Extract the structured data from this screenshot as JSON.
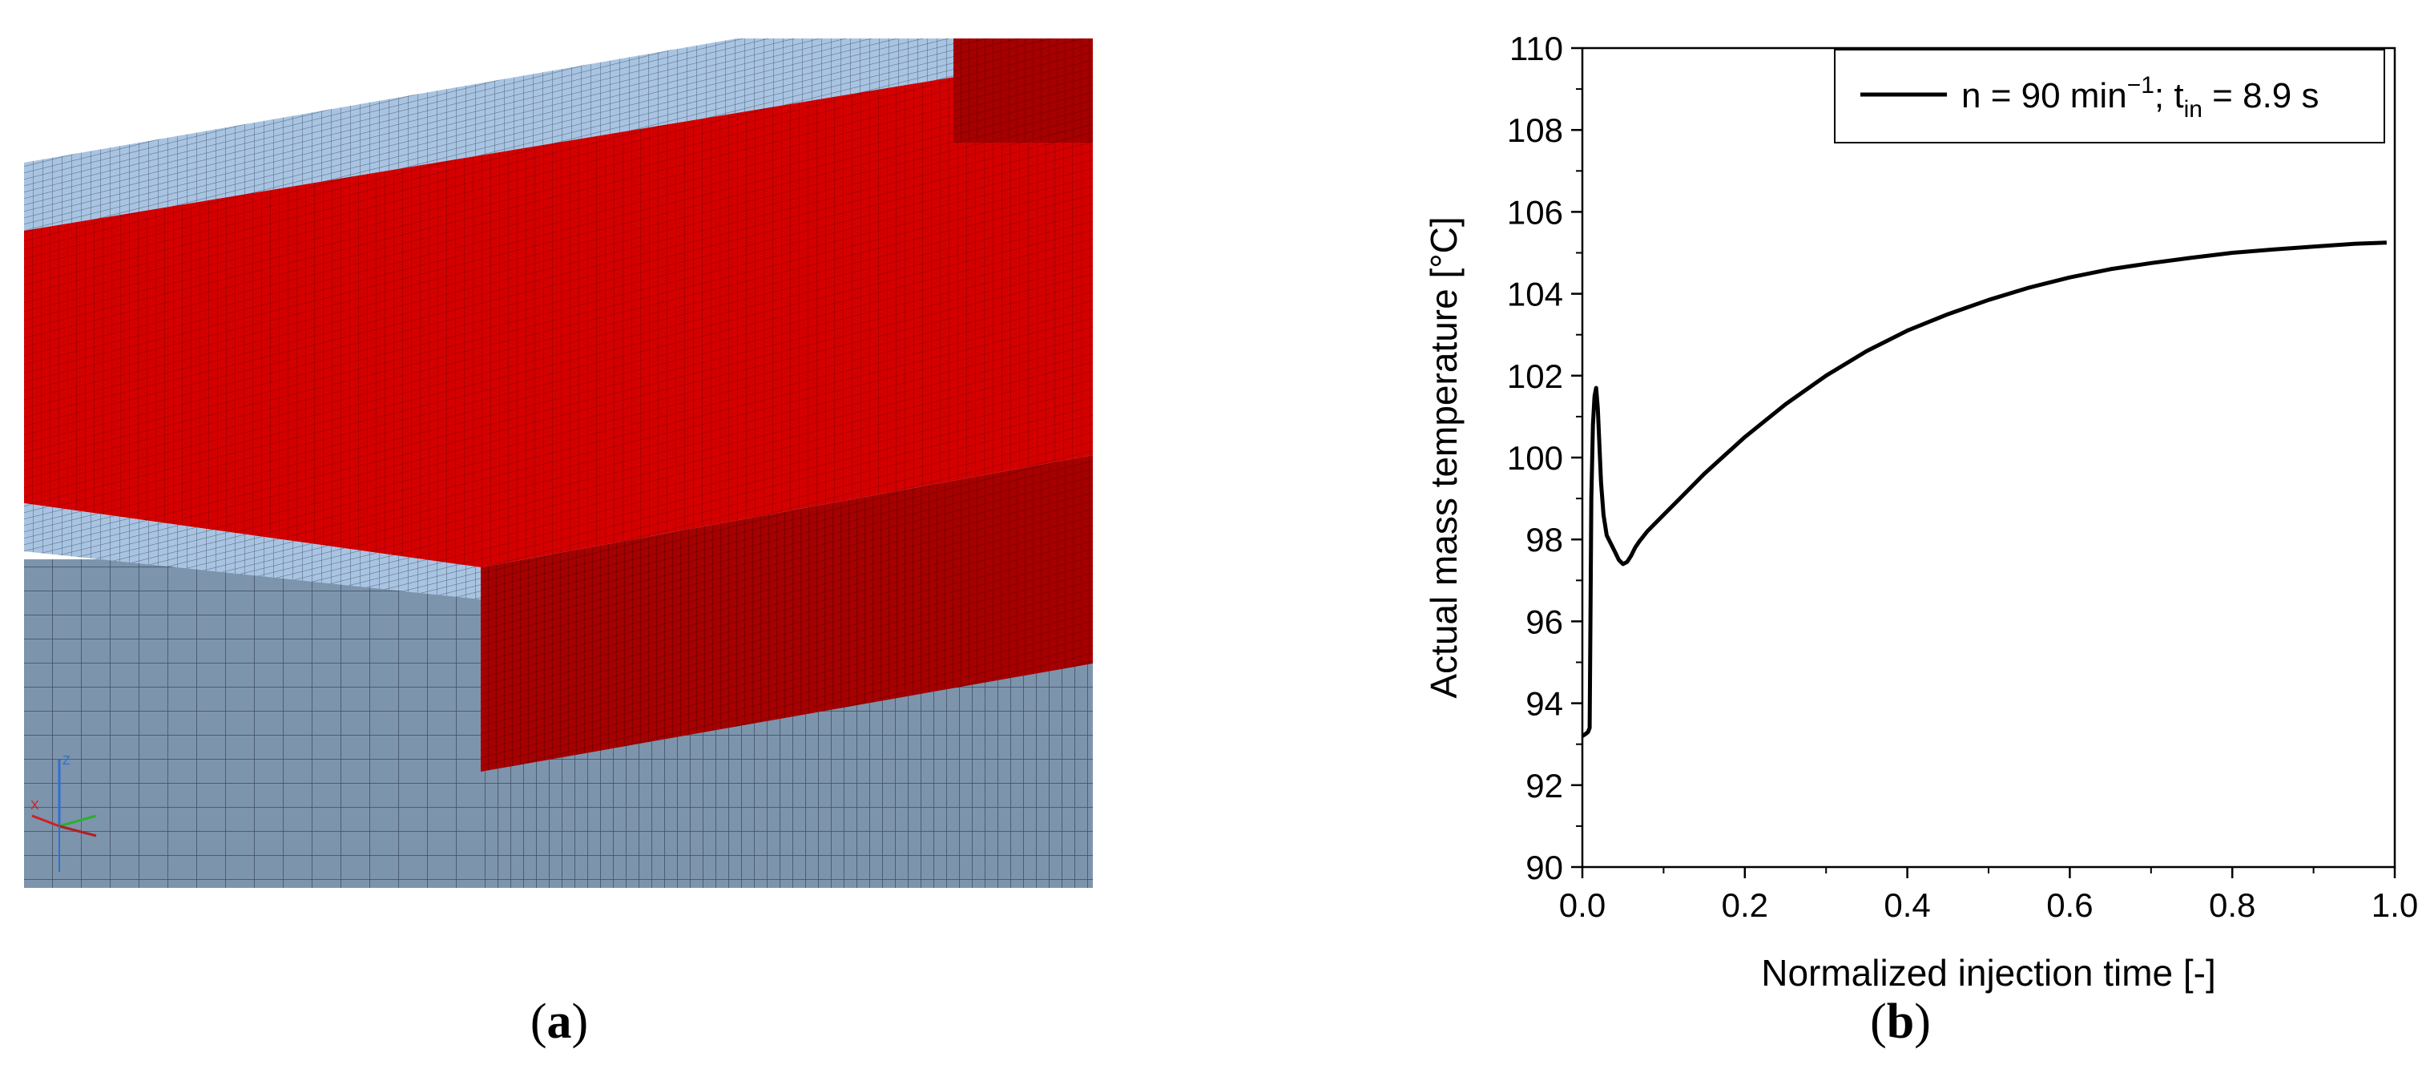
{
  "panels": {
    "a": {
      "caption_open": "(",
      "caption_letter": "a",
      "caption_close": ")"
    },
    "b": {
      "caption_open": "(",
      "caption_letter": "b",
      "caption_close": ")"
    }
  },
  "mesh": {
    "colors": {
      "red": "#d40000",
      "dark_red": "#a60000",
      "blue_gray": "#7d94ad",
      "light_blue": "#a9c4e2"
    },
    "triad": {
      "x_label": "X",
      "y_label": "Y",
      "z_label": "Z"
    }
  },
  "chart_data": {
    "type": "line",
    "xlabel": "Normalized injection time [-]",
    "ylabel": "Actual mass temperature [°C]",
    "xlim": [
      0.0,
      1.0
    ],
    "ylim": [
      90,
      110
    ],
    "x_ticks": [
      "0.0",
      "0.2",
      "0.4",
      "0.6",
      "0.8",
      "1.0"
    ],
    "y_ticks": [
      "90",
      "92",
      "94",
      "96",
      "98",
      "100",
      "102",
      "104",
      "106",
      "108",
      "110"
    ],
    "legend": {
      "position": "top-right",
      "entry": {
        "main": "n = 90 min",
        "sup1": "−1",
        "mid": "; t",
        "sub": "in",
        "end": " = 8.9 s"
      }
    },
    "series": [
      {
        "name": "n = 90 min−1; tin = 8.9 s",
        "color": "#000000",
        "x": [
          0.0,
          0.004,
          0.007,
          0.009,
          0.01,
          0.011,
          0.013,
          0.015,
          0.017,
          0.019,
          0.021,
          0.023,
          0.026,
          0.03,
          0.035,
          0.04,
          0.045,
          0.05,
          0.055,
          0.06,
          0.065,
          0.07,
          0.08,
          0.1,
          0.12,
          0.15,
          0.2,
          0.25,
          0.3,
          0.35,
          0.4,
          0.45,
          0.5,
          0.55,
          0.6,
          0.65,
          0.7,
          0.75,
          0.8,
          0.85,
          0.9,
          0.95,
          0.99
        ],
        "y": [
          93.2,
          93.25,
          93.3,
          93.4,
          96.0,
          99.0,
          100.8,
          101.5,
          101.7,
          101.2,
          100.3,
          99.4,
          98.6,
          98.1,
          97.9,
          97.7,
          97.5,
          97.4,
          97.45,
          97.6,
          97.8,
          97.95,
          98.2,
          98.6,
          99.0,
          99.6,
          100.5,
          101.3,
          102.0,
          102.6,
          103.1,
          103.5,
          103.85,
          104.15,
          104.4,
          104.6,
          104.75,
          104.88,
          105.0,
          105.08,
          105.15,
          105.22,
          105.25
        ]
      }
    ]
  }
}
